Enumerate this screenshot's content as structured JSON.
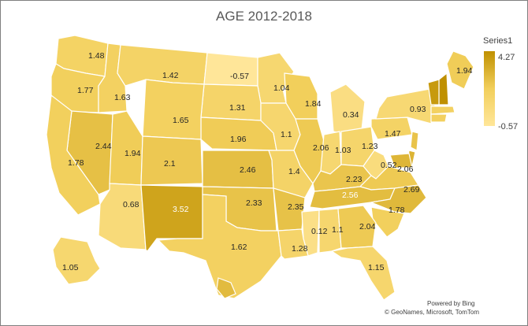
{
  "chart_data": {
    "type": "choropleth",
    "title": "AGE 2012-2018",
    "legend": {
      "title": "Series1",
      "max": "4.27",
      "min": "-0.57",
      "colors": [
        "#bf9000",
        "#f2cf5b",
        "#ffe699"
      ]
    },
    "regions": [
      {
        "state": "WA",
        "value": 1.48
      },
      {
        "state": "OR",
        "value": 1.77
      },
      {
        "state": "ID",
        "value": 1.63
      },
      {
        "state": "MT",
        "value": 1.42
      },
      {
        "state": "ND",
        "value": -0.57
      },
      {
        "state": "MN",
        "value": 1.04
      },
      {
        "state": "SD",
        "value": 1.31
      },
      {
        "state": "WI",
        "value": 1.84
      },
      {
        "state": "MI",
        "value": 0.34
      },
      {
        "state": "ME",
        "value": 1.94
      },
      {
        "state": "NY",
        "value": 0.93
      },
      {
        "state": "WY",
        "value": 1.65
      },
      {
        "state": "NE",
        "value": 1.96
      },
      {
        "state": "IA",
        "value": 1.1
      },
      {
        "state": "NV",
        "value": 2.44
      },
      {
        "state": "UT",
        "value": 1.94
      },
      {
        "state": "CA",
        "value": 1.78
      },
      {
        "state": "CO",
        "value": 2.1
      },
      {
        "state": "IL",
        "value": 2.06
      },
      {
        "state": "IN",
        "value": 1.03
      },
      {
        "state": "OH",
        "value": 1.23
      },
      {
        "state": "PA",
        "value": 1.47
      },
      {
        "state": "KS",
        "value": 2.46
      },
      {
        "state": "MO",
        "value": 1.4
      },
      {
        "state": "KY",
        "value": 2.23
      },
      {
        "state": "WV",
        "value": 0.52
      },
      {
        "state": "VA",
        "value": 2.06
      },
      {
        "state": "AZ",
        "value": 0.68
      },
      {
        "state": "NM",
        "value": 3.52
      },
      {
        "state": "OK",
        "value": 2.33
      },
      {
        "state": "AR",
        "value": 2.35
      },
      {
        "state": "TN",
        "value": 2.56
      },
      {
        "state": "NC",
        "value": 2.69
      },
      {
        "state": "SC",
        "value": 1.78
      },
      {
        "state": "MS",
        "value": 0.12
      },
      {
        "state": "AL",
        "value": 1.1
      },
      {
        "state": "GA",
        "value": 2.04
      },
      {
        "state": "TX",
        "value": 1.62
      },
      {
        "state": "LA",
        "value": 1.28
      },
      {
        "state": "FL",
        "value": 1.15
      },
      {
        "state": "AK",
        "value": 1.05
      }
    ]
  },
  "attribution": {
    "powered": "Powered by Bing",
    "credit": "© GeoNames, Microsoft, TomTom"
  }
}
